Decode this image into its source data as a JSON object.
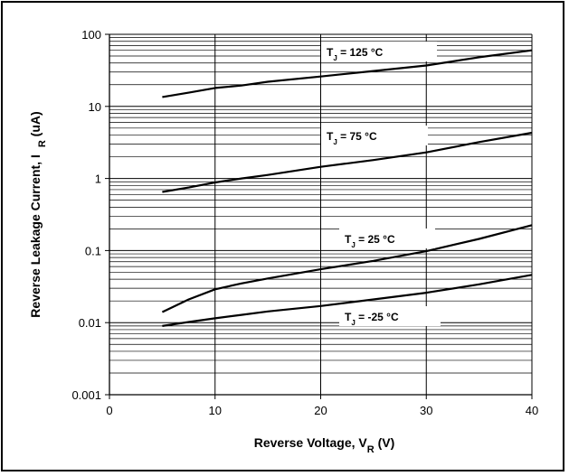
{
  "chart_data": {
    "type": "line",
    "xlabel": "Reverse Voltage, V",
    "xlabel_sub": "R",
    "xlabel_unit": " (V)",
    "ylabel": "Reverse Leakage Current, I",
    "ylabel_sub": "R",
    "ylabel_unit": " (uA)",
    "x_scale": "linear",
    "y_scale": "log",
    "xlim": [
      0,
      40
    ],
    "ylim": [
      0.001,
      100
    ],
    "x_ticks": [
      "0",
      "10",
      "20",
      "30",
      "40"
    ],
    "y_ticks": [
      "100",
      "10",
      "1",
      "0.1",
      "0.01",
      "0.001"
    ],
    "grid": true,
    "series": [
      {
        "name": "T_J = 125 °C",
        "label_main": "T",
        "label_sub": "J",
        "label_rest": " = 125 °C",
        "x": [
          5,
          7.5,
          10,
          12.5,
          15,
          20,
          25,
          30,
          35,
          40
        ],
        "values": [
          13.5,
          15.5,
          18,
          19.5,
          22,
          26,
          31,
          37,
          48,
          60
        ]
      },
      {
        "name": "T_J = 75 °C",
        "label_main": "T",
        "label_sub": "J",
        "label_rest": " = 75 °C",
        "x": [
          5,
          7.5,
          10,
          12.5,
          15,
          20,
          25,
          30,
          35,
          40
        ],
        "values": [
          0.65,
          0.75,
          0.88,
          1.0,
          1.12,
          1.45,
          1.8,
          2.3,
          3.2,
          4.3
        ]
      },
      {
        "name": "T_J = 25 °C",
        "label_main": "T",
        "label_sub": "J",
        "label_rest": " = 25 °C",
        "x": [
          5,
          7.5,
          10,
          12.5,
          15,
          20,
          25,
          30,
          35,
          40
        ],
        "values": [
          0.014,
          0.021,
          0.029,
          0.035,
          0.041,
          0.055,
          0.072,
          0.098,
          0.145,
          0.225
        ]
      },
      {
        "name": "T_J = -25 °C",
        "label_main": "T",
        "label_sub": "J",
        "label_rest": " = -25 °C",
        "x": [
          5,
          7.5,
          10,
          12.5,
          15,
          20,
          25,
          30,
          35,
          40
        ],
        "values": [
          0.009,
          0.0102,
          0.0115,
          0.0128,
          0.0143,
          0.017,
          0.021,
          0.026,
          0.034,
          0.046
        ]
      }
    ]
  }
}
